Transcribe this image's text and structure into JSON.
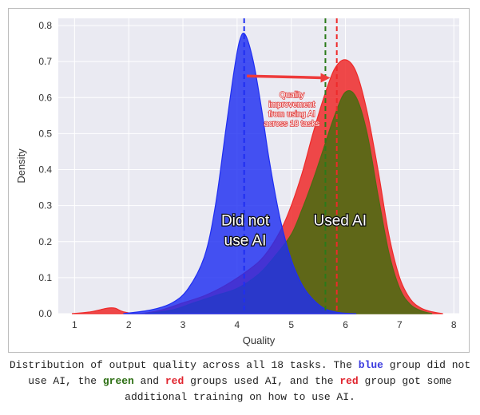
{
  "chart_data": {
    "type": "area",
    "title": "",
    "xlabel": "Quality",
    "ylabel": "Density",
    "xlim": [
      0.7,
      8.1
    ],
    "ylim": [
      0,
      0.82
    ],
    "x_ticks": [
      1,
      2,
      3,
      4,
      5,
      6,
      7,
      8
    ],
    "y_ticks": [
      0.0,
      0.1,
      0.2,
      0.3,
      0.4,
      0.5,
      0.6,
      0.7,
      0.8
    ],
    "grid": true,
    "series": [
      {
        "name": "",
        "color": "#ee2a2a",
        "x": [
          0.95,
          1.3,
          1.6,
          1.75,
          1.9,
          2.2,
          2.6,
          3.0,
          3.4,
          3.8,
          4.2,
          4.5,
          4.8,
          5.0,
          5.2,
          5.4,
          5.6,
          5.8,
          6.0,
          6.2,
          6.4,
          6.6,
          6.8,
          7.0,
          7.2,
          7.4,
          7.6,
          7.8
        ],
        "y": [
          0.0,
          0.005,
          0.015,
          0.015,
          0.005,
          0.0,
          0.01,
          0.03,
          0.05,
          0.08,
          0.12,
          0.16,
          0.23,
          0.3,
          0.39,
          0.5,
          0.6,
          0.68,
          0.705,
          0.67,
          0.56,
          0.4,
          0.22,
          0.1,
          0.04,
          0.015,
          0.005,
          0.0
        ]
      },
      {
        "name": "",
        "color": "#4f6a13",
        "x": [
          2.3,
          2.8,
          3.2,
          3.6,
          4.0,
          4.4,
          4.7,
          5.0,
          5.2,
          5.4,
          5.6,
          5.8,
          6.0,
          6.2,
          6.4,
          6.6,
          6.8,
          7.0,
          7.2,
          7.4,
          7.6
        ],
        "y": [
          0.0,
          0.01,
          0.03,
          0.05,
          0.07,
          0.11,
          0.16,
          0.22,
          0.29,
          0.37,
          0.46,
          0.55,
          0.615,
          0.6,
          0.5,
          0.33,
          0.17,
          0.07,
          0.025,
          0.008,
          0.0
        ]
      },
      {
        "name": "",
        "color": "#1f2ef2",
        "x": [
          1.9,
          2.4,
          2.8,
          3.1,
          3.4,
          3.6,
          3.8,
          3.95,
          4.05,
          4.15,
          4.3,
          4.45,
          4.6,
          4.8,
          5.0,
          5.2,
          5.4,
          5.6,
          5.8,
          6.0,
          6.2
        ],
        "y": [
          0.0,
          0.01,
          0.03,
          0.07,
          0.16,
          0.3,
          0.52,
          0.68,
          0.76,
          0.775,
          0.7,
          0.57,
          0.42,
          0.26,
          0.15,
          0.08,
          0.04,
          0.015,
          0.005,
          0.001,
          0.0
        ]
      }
    ],
    "vlines": [
      {
        "x": 4.13,
        "color": "#1f2ef2"
      },
      {
        "x": 5.63,
        "color": "#2a7a1a"
      },
      {
        "x": 5.84,
        "color": "#ee2a2a"
      }
    ],
    "annotations": [
      {
        "text": "Did not",
        "x": 4.15,
        "y": 0.245
      },
      {
        "text": "use AI",
        "x": 4.15,
        "y": 0.19
      },
      {
        "text": "Used AI",
        "x": 5.9,
        "y": 0.245
      }
    ],
    "arrow": {
      "from": [
        4.18,
        0.66
      ],
      "to": [
        5.72,
        0.655
      ],
      "color": "#ee3b3b"
    },
    "arrow_label": [
      "Quality",
      "improvement",
      "from using AI",
      "across 18 tasks"
    ]
  },
  "caption": {
    "p1": "Distribution of output quality across all 18 tasks. The ",
    "blue": "blue",
    "p2": " group did not use AI, the ",
    "green": "green",
    "p3": " and ",
    "red1": "red",
    "p4": " groups used AI, and the ",
    "red2": "red",
    "p5": " group got some additional training on how to use AI.",
    "color_blue": "#3a3adf",
    "color_green": "#2c6e12",
    "color_red": "#e0232d"
  }
}
